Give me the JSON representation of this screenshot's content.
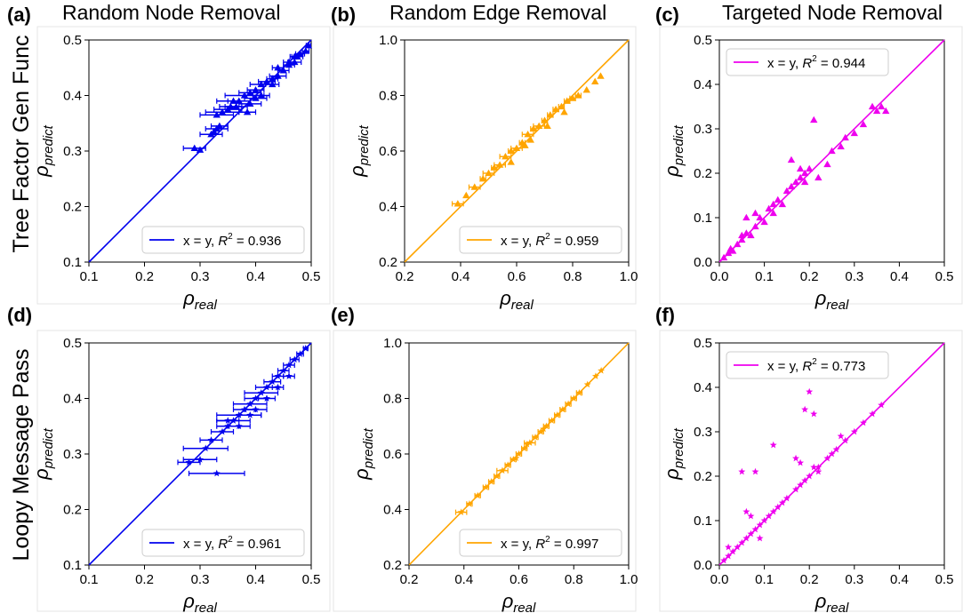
{
  "columns": [
    "Random Node Removal",
    "Random Edge Removal",
    "Targeted Node Removal"
  ],
  "rows": [
    "Tree Factor Gen Func",
    "Loopy Message Pass"
  ],
  "colors": {
    "node": "#0000ee",
    "edge": "#ffa500",
    "targeted": "#ee00ee"
  },
  "chart_data": [
    {
      "panel": "(a)",
      "type": "scatter",
      "color": "#0000ee",
      "marker": "triangle",
      "xlabel_sym": "ρ",
      "xlabel_sub": "real",
      "ylabel_sym": "ρ",
      "ylabel_sub": "predict",
      "xlim": [
        0.1,
        0.5
      ],
      "ylim": [
        0.1,
        0.5
      ],
      "xticks": [
        "0.1",
        "0.2",
        "0.3",
        "0.4",
        "0.5"
      ],
      "yticks": [
        "0.1",
        "0.2",
        "0.3",
        "0.4",
        "0.5"
      ],
      "legend_pos": "bottom-right",
      "legend_text": "x = y,",
      "legend_r2": "0.936",
      "points": [
        [
          0.29,
          0.305,
          0.02
        ],
        [
          0.3,
          0.302,
          0
        ],
        [
          0.32,
          0.33,
          0.02
        ],
        [
          0.325,
          0.335,
          0
        ],
        [
          0.33,
          0.34,
          0.02
        ],
        [
          0.335,
          0.345,
          0.015
        ],
        [
          0.33,
          0.365,
          0.03
        ],
        [
          0.34,
          0.37,
          0.03
        ],
        [
          0.35,
          0.375,
          0.025
        ],
        [
          0.355,
          0.38,
          0.02
        ],
        [
          0.365,
          0.38,
          0.02
        ],
        [
          0.36,
          0.39,
          0.03
        ],
        [
          0.37,
          0.39,
          0.02
        ],
        [
          0.38,
          0.4,
          0.035
        ],
        [
          0.39,
          0.405,
          0.02
        ],
        [
          0.4,
          0.41,
          0.015
        ],
        [
          0.4,
          0.395,
          0.02
        ],
        [
          0.41,
          0.42,
          0.02
        ],
        [
          0.42,
          0.425,
          0.015
        ],
        [
          0.43,
          0.43,
          0.01
        ],
        [
          0.44,
          0.435,
          0.015
        ],
        [
          0.45,
          0.445,
          0.01
        ],
        [
          0.46,
          0.455,
          0.01
        ],
        [
          0.47,
          0.46,
          0.012
        ],
        [
          0.475,
          0.47,
          0.01
        ],
        [
          0.48,
          0.475,
          0.008
        ],
        [
          0.49,
          0.48,
          0.006
        ],
        [
          0.495,
          0.49,
          0.004
        ],
        [
          0.39,
          0.385,
          0.02
        ],
        [
          0.41,
          0.4,
          0.015
        ],
        [
          0.43,
          0.42,
          0.012
        ],
        [
          0.44,
          0.45,
          0.01
        ],
        [
          0.46,
          0.46,
          0.01
        ],
        [
          0.47,
          0.47,
          0.008
        ],
        [
          0.385,
          0.37,
          0.015
        ]
      ]
    },
    {
      "panel": "(b)",
      "type": "scatter",
      "color": "#ffa500",
      "marker": "triangle",
      "xlabel_sym": "ρ",
      "xlabel_sub": "real",
      "ylabel_sym": "ρ",
      "ylabel_sub": "predict",
      "xlim": [
        0.2,
        1.0
      ],
      "ylim": [
        0.2,
        1.0
      ],
      "xticks": [
        "0.2",
        "0.4",
        "0.6",
        "0.8",
        "1.0"
      ],
      "yticks": [
        "0.2",
        "0.4",
        "0.6",
        "0.8",
        "1.0"
      ],
      "legend_pos": "bottom-right",
      "legend_text": "x = y,",
      "legend_r2": "0.959",
      "points": [
        [
          0.39,
          0.41,
          0.02
        ],
        [
          0.42,
          0.44,
          0
        ],
        [
          0.45,
          0.47,
          0.02
        ],
        [
          0.48,
          0.5,
          0.01
        ],
        [
          0.5,
          0.52,
          0.02
        ],
        [
          0.52,
          0.54,
          0.01
        ],
        [
          0.54,
          0.55,
          0.02
        ],
        [
          0.56,
          0.58,
          0.02
        ],
        [
          0.58,
          0.6,
          0.01
        ],
        [
          0.6,
          0.61,
          0.02
        ],
        [
          0.62,
          0.63,
          0.01
        ],
        [
          0.64,
          0.66,
          0.02
        ],
        [
          0.66,
          0.68,
          0.01
        ],
        [
          0.68,
          0.69,
          0.02
        ],
        [
          0.7,
          0.71,
          0.01
        ],
        [
          0.72,
          0.73,
          0.01
        ],
        [
          0.74,
          0.75,
          0.01
        ],
        [
          0.76,
          0.76,
          0.01
        ],
        [
          0.78,
          0.78,
          0.01
        ],
        [
          0.8,
          0.79,
          0.01
        ],
        [
          0.82,
          0.8,
          0.01
        ],
        [
          0.85,
          0.82,
          0
        ],
        [
          0.88,
          0.85,
          0
        ],
        [
          0.9,
          0.87,
          0
        ],
        [
          0.58,
          0.56,
          0
        ],
        [
          0.63,
          0.62,
          0
        ],
        [
          0.65,
          0.64,
          0
        ],
        [
          0.71,
          0.69,
          0
        ],
        [
          0.77,
          0.74,
          0
        ]
      ]
    },
    {
      "panel": "(c)",
      "type": "scatter",
      "color": "#ee00ee",
      "marker": "triangle",
      "xlabel_sym": "ρ",
      "xlabel_sub": "real",
      "ylabel_sym": "ρ",
      "ylabel_sub": "predict",
      "xlim": [
        0.0,
        0.5
      ],
      "ylim": [
        0.0,
        0.5
      ],
      "xticks": [
        "0.0",
        "0.1",
        "0.2",
        "0.3",
        "0.4",
        "0.5"
      ],
      "yticks": [
        "0.0",
        "0.1",
        "0.2",
        "0.3",
        "0.4",
        "0.5"
      ],
      "legend_pos": "top-left",
      "legend_text": "x = y,",
      "legend_r2": "0.944",
      "points": [
        [
          0.01,
          0.01,
          0
        ],
        [
          0.02,
          0.02,
          0
        ],
        [
          0.025,
          0.03,
          0
        ],
        [
          0.03,
          0.025,
          0
        ],
        [
          0.04,
          0.04,
          0
        ],
        [
          0.05,
          0.05,
          0
        ],
        [
          0.06,
          0.065,
          0
        ],
        [
          0.07,
          0.06,
          0
        ],
        [
          0.08,
          0.08,
          0
        ],
        [
          0.09,
          0.1,
          0
        ],
        [
          0.1,
          0.09,
          0
        ],
        [
          0.11,
          0.12,
          0
        ],
        [
          0.12,
          0.11,
          0
        ],
        [
          0.13,
          0.14,
          0
        ],
        [
          0.14,
          0.13,
          0
        ],
        [
          0.15,
          0.16,
          0
        ],
        [
          0.16,
          0.17,
          0
        ],
        [
          0.17,
          0.18,
          0
        ],
        [
          0.18,
          0.19,
          0
        ],
        [
          0.19,
          0.2,
          0
        ],
        [
          0.2,
          0.21,
          0
        ],
        [
          0.21,
          0.32,
          0
        ],
        [
          0.16,
          0.23,
          0
        ],
        [
          0.18,
          0.21,
          0
        ],
        [
          0.22,
          0.19,
          0
        ],
        [
          0.24,
          0.22,
          0
        ],
        [
          0.25,
          0.25,
          0
        ],
        [
          0.27,
          0.26,
          0
        ],
        [
          0.28,
          0.28,
          0
        ],
        [
          0.3,
          0.29,
          0
        ],
        [
          0.32,
          0.31,
          0
        ],
        [
          0.34,
          0.35,
          0
        ],
        [
          0.35,
          0.34,
          0
        ],
        [
          0.36,
          0.35,
          0
        ],
        [
          0.37,
          0.34,
          0
        ],
        [
          0.06,
          0.1,
          0
        ],
        [
          0.08,
          0.11,
          0
        ],
        [
          0.05,
          0.06,
          0
        ],
        [
          0.12,
          0.13,
          0
        ],
        [
          0.19,
          0.18,
          0
        ]
      ]
    },
    {
      "panel": "(d)",
      "type": "scatter",
      "color": "#0000ee",
      "marker": "star",
      "xlabel_sym": "ρ",
      "xlabel_sub": "real",
      "ylabel_sym": "ρ",
      "ylabel_sub": "predict",
      "xlim": [
        0.1,
        0.5
      ],
      "ylim": [
        0.1,
        0.5
      ],
      "xticks": [
        "0.1",
        "0.2",
        "0.3",
        "0.4",
        "0.5"
      ],
      "yticks": [
        "0.1",
        "0.2",
        "0.3",
        "0.4",
        "0.5"
      ],
      "legend_pos": "bottom-right",
      "legend_text": "x = y,",
      "legend_r2": "0.961",
      "points": [
        [
          0.28,
          0.285,
          0.02
        ],
        [
          0.3,
          0.29,
          0.03
        ],
        [
          0.31,
          0.31,
          0.04
        ],
        [
          0.33,
          0.265,
          0.05
        ],
        [
          0.32,
          0.325,
          0.02
        ],
        [
          0.34,
          0.34,
          0.02
        ],
        [
          0.35,
          0.35,
          0.02
        ],
        [
          0.36,
          0.36,
          0.03
        ],
        [
          0.37,
          0.37,
          0.04
        ],
        [
          0.38,
          0.38,
          0.02
        ],
        [
          0.39,
          0.39,
          0.03
        ],
        [
          0.4,
          0.4,
          0.02
        ],
        [
          0.41,
          0.41,
          0.03
        ],
        [
          0.42,
          0.42,
          0.02
        ],
        [
          0.43,
          0.43,
          0.015
        ],
        [
          0.44,
          0.44,
          0.01
        ],
        [
          0.45,
          0.45,
          0.01
        ],
        [
          0.46,
          0.46,
          0.01
        ],
        [
          0.47,
          0.47,
          0.008
        ],
        [
          0.48,
          0.48,
          0.006
        ],
        [
          0.49,
          0.49,
          0.004
        ],
        [
          0.35,
          0.36,
          0.02
        ],
        [
          0.37,
          0.35,
          0.02
        ],
        [
          0.39,
          0.37,
          0.02
        ],
        [
          0.4,
          0.38,
          0.02
        ],
        [
          0.42,
          0.4,
          0.015
        ],
        [
          0.44,
          0.42,
          0.01
        ],
        [
          0.46,
          0.44,
          0.01
        ]
      ]
    },
    {
      "panel": "(e)",
      "type": "scatter",
      "color": "#ffa500",
      "marker": "star",
      "xlabel_sym": "ρ",
      "xlabel_sub": "real",
      "ylabel_sym": "ρ",
      "ylabel_sub": "predict",
      "xlim": [
        0.2,
        1.0
      ],
      "ylim": [
        0.2,
        1.0
      ],
      "xticks": [
        "0.2",
        "0.4",
        "0.6",
        "0.8",
        "1.0"
      ],
      "yticks": [
        "0.2",
        "0.4",
        "0.6",
        "0.8",
        "1.0"
      ],
      "legend_pos": "bottom-right",
      "legend_text": "x = y,",
      "legend_r2": "0.997",
      "points": [
        [
          0.39,
          0.39,
          0.02
        ],
        [
          0.42,
          0.42,
          0.01
        ],
        [
          0.45,
          0.45,
          0.01
        ],
        [
          0.48,
          0.48,
          0.01
        ],
        [
          0.5,
          0.5,
          0.01
        ],
        [
          0.52,
          0.52,
          0.01
        ],
        [
          0.54,
          0.54,
          0.02
        ],
        [
          0.56,
          0.56,
          0.01
        ],
        [
          0.58,
          0.58,
          0.01
        ],
        [
          0.6,
          0.6,
          0.01
        ],
        [
          0.62,
          0.62,
          0.01
        ],
        [
          0.64,
          0.64,
          0.02
        ],
        [
          0.66,
          0.66,
          0.01
        ],
        [
          0.68,
          0.68,
          0.01
        ],
        [
          0.7,
          0.7,
          0.01
        ],
        [
          0.72,
          0.72,
          0.01
        ],
        [
          0.74,
          0.74,
          0.01
        ],
        [
          0.76,
          0.76,
          0.01
        ],
        [
          0.78,
          0.78,
          0.01
        ],
        [
          0.8,
          0.8,
          0.01
        ],
        [
          0.82,
          0.82,
          0.01
        ],
        [
          0.85,
          0.85,
          0
        ],
        [
          0.88,
          0.88,
          0
        ],
        [
          0.9,
          0.9,
          0
        ],
        [
          0.59,
          0.585,
          0
        ],
        [
          0.63,
          0.635,
          0
        ],
        [
          0.69,
          0.69,
          0
        ]
      ]
    },
    {
      "panel": "(f)",
      "type": "scatter",
      "color": "#ee00ee",
      "marker": "star",
      "xlabel_sym": "ρ",
      "xlabel_sub": "real",
      "ylabel_sym": "ρ",
      "ylabel_sub": "predict",
      "xlim": [
        0.0,
        0.5
      ],
      "ylim": [
        0.0,
        0.5
      ],
      "xticks": [
        "0.0",
        "0.1",
        "0.2",
        "0.3",
        "0.4",
        "0.5"
      ],
      "yticks": [
        "0.0",
        "0.1",
        "0.2",
        "0.3",
        "0.4",
        "0.5"
      ],
      "legend_pos": "top-left",
      "legend_text": "x = y,",
      "legend_r2": "0.773",
      "points": [
        [
          0.01,
          0.01,
          0
        ],
        [
          0.02,
          0.02,
          0
        ],
        [
          0.02,
          0.04,
          0
        ],
        [
          0.03,
          0.03,
          0
        ],
        [
          0.04,
          0.04,
          0
        ],
        [
          0.05,
          0.05,
          0
        ],
        [
          0.06,
          0.06,
          0
        ],
        [
          0.07,
          0.07,
          0
        ],
        [
          0.08,
          0.08,
          0
        ],
        [
          0.09,
          0.09,
          0
        ],
        [
          0.1,
          0.1,
          0
        ],
        [
          0.11,
          0.11,
          0
        ],
        [
          0.12,
          0.12,
          0
        ],
        [
          0.13,
          0.13,
          0
        ],
        [
          0.14,
          0.14,
          0
        ],
        [
          0.15,
          0.15,
          0
        ],
        [
          0.17,
          0.17,
          0
        ],
        [
          0.18,
          0.18,
          0
        ],
        [
          0.19,
          0.19,
          0
        ],
        [
          0.2,
          0.2,
          0
        ],
        [
          0.22,
          0.22,
          0
        ],
        [
          0.24,
          0.24,
          0
        ],
        [
          0.26,
          0.26,
          0
        ],
        [
          0.28,
          0.28,
          0
        ],
        [
          0.3,
          0.3,
          0
        ],
        [
          0.32,
          0.32,
          0
        ],
        [
          0.34,
          0.34,
          0
        ],
        [
          0.36,
          0.36,
          0
        ],
        [
          0.05,
          0.21,
          0
        ],
        [
          0.08,
          0.21,
          0
        ],
        [
          0.06,
          0.12,
          0
        ],
        [
          0.07,
          0.11,
          0
        ],
        [
          0.09,
          0.06,
          0
        ],
        [
          0.12,
          0.27,
          0
        ],
        [
          0.17,
          0.24,
          0
        ],
        [
          0.18,
          0.23,
          0
        ],
        [
          0.19,
          0.35,
          0
        ],
        [
          0.2,
          0.39,
          0
        ],
        [
          0.21,
          0.34,
          0
        ],
        [
          0.21,
          0.22,
          0
        ],
        [
          0.22,
          0.21,
          0
        ],
        [
          0.25,
          0.25,
          0
        ],
        [
          0.27,
          0.29,
          0
        ]
      ]
    }
  ]
}
